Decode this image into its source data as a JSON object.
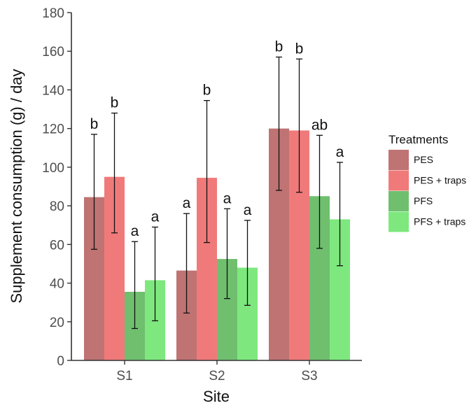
{
  "chart_data": {
    "type": "bar",
    "xlabel": "Site",
    "ylabel": "Supplement consumption (g) / day",
    "ylim": [
      0,
      180
    ],
    "yticks": [
      0,
      20,
      40,
      60,
      80,
      100,
      120,
      140,
      160,
      180
    ],
    "categories": [
      "S1",
      "S2",
      "S3"
    ],
    "legend_title": "Treatments",
    "legend_position": "right",
    "grid": false,
    "series": [
      {
        "name": "PES",
        "color": "#bf7373",
        "values": [
          84.5,
          46.5,
          120
        ],
        "err_low": [
          57.5,
          24.5,
          88
        ],
        "err_high": [
          117,
          76,
          157
        ],
        "letters": [
          "b",
          "a",
          "b"
        ]
      },
      {
        "name": "PES + traps",
        "color": "#f07a7a",
        "values": [
          95,
          94.5,
          119
        ],
        "err_low": [
          66,
          61,
          87
        ],
        "err_high": [
          128,
          134.5,
          156
        ],
        "letters": [
          "b",
          "b",
          "b"
        ]
      },
      {
        "name": "PFS",
        "color": "#6fbf6f",
        "values": [
          35.5,
          52.5,
          85
        ],
        "err_low": [
          16.5,
          32,
          58
        ],
        "err_high": [
          61.5,
          78.5,
          116.5
        ],
        "letters": [
          "a",
          "a",
          "ab"
        ]
      },
      {
        "name": "PFS + traps",
        "color": "#7ee87e",
        "values": [
          41.5,
          48,
          73
        ],
        "err_low": [
          20.5,
          28.5,
          49
        ],
        "err_high": [
          69,
          72.5,
          102.5
        ],
        "letters": [
          "a",
          "a",
          "a"
        ]
      }
    ]
  }
}
